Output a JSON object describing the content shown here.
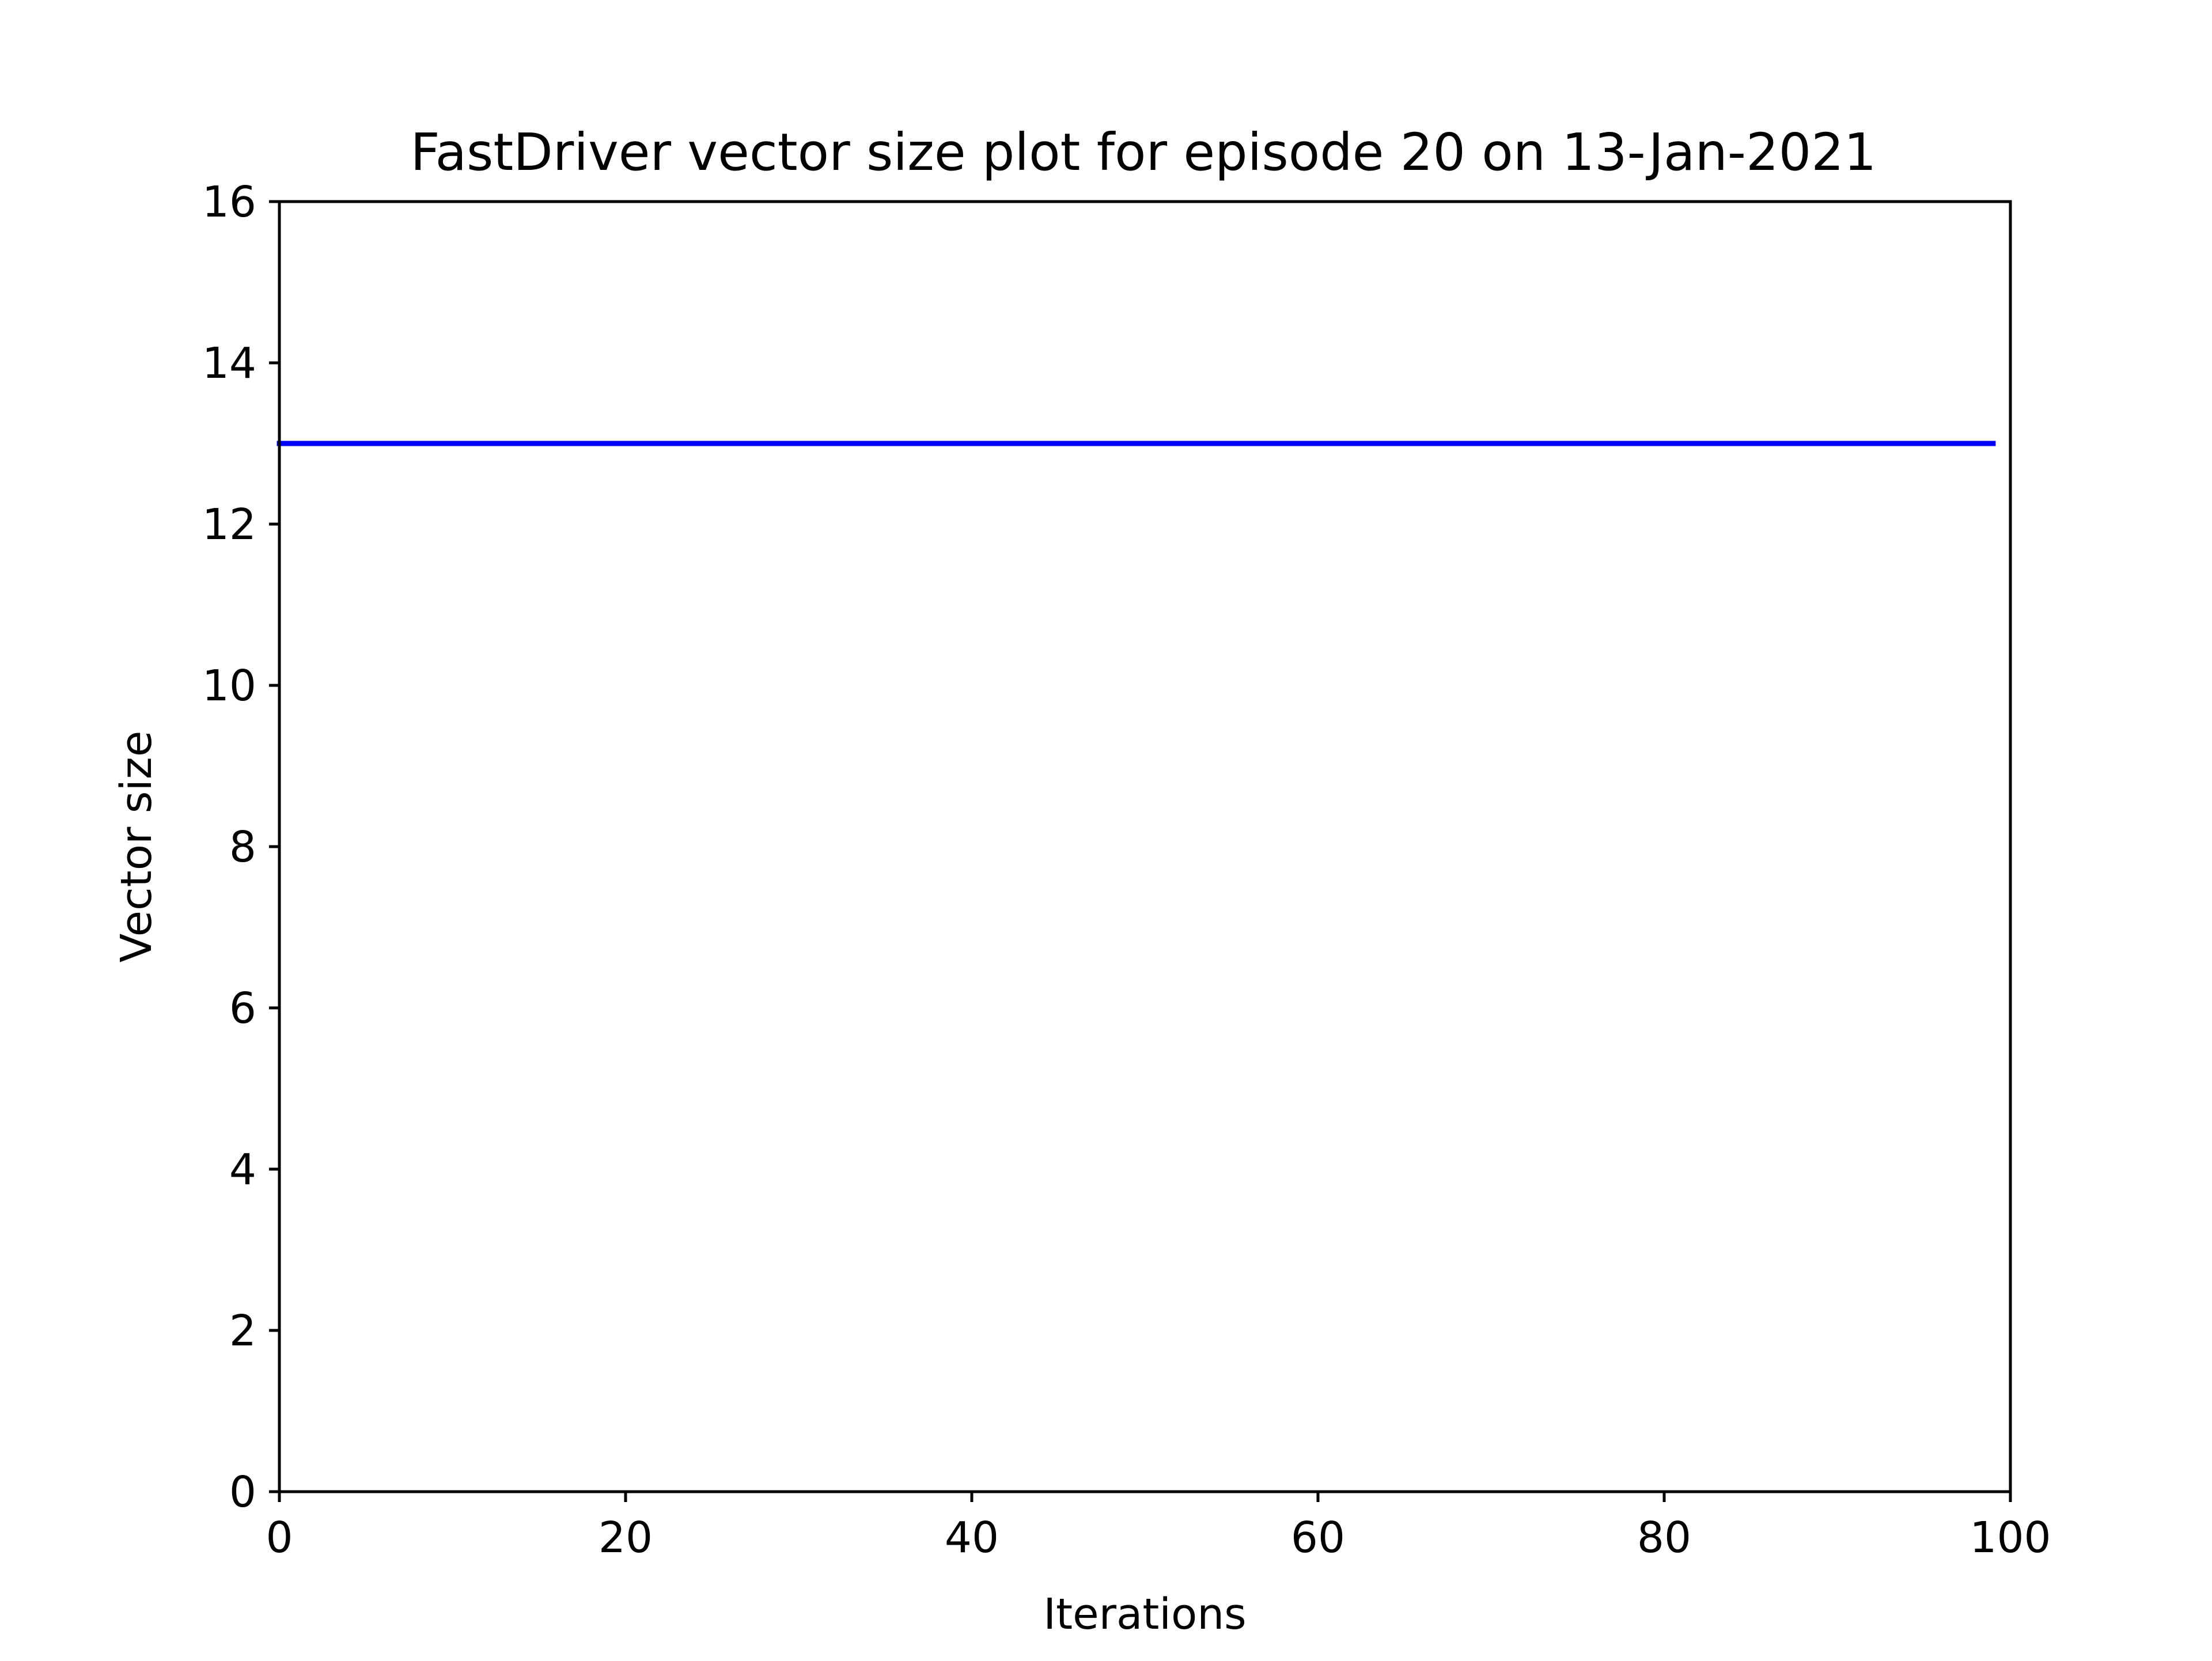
{
  "chart_data": {
    "type": "line",
    "title": "FastDriver vector size plot for episode 20 on 13-Jan-2021",
    "xlabel": "Iterations",
    "ylabel": "Vector size",
    "xlim": [
      0,
      100
    ],
    "ylim": [
      0,
      16
    ],
    "xticks": [
      0,
      20,
      40,
      60,
      80,
      100
    ],
    "yticks": [
      0,
      2,
      4,
      6,
      8,
      10,
      12,
      14,
      16
    ],
    "grid": false,
    "series": [
      {
        "color": "#0000ff",
        "x": [
          0,
          99
        ],
        "y": [
          13,
          13
        ]
      }
    ]
  }
}
